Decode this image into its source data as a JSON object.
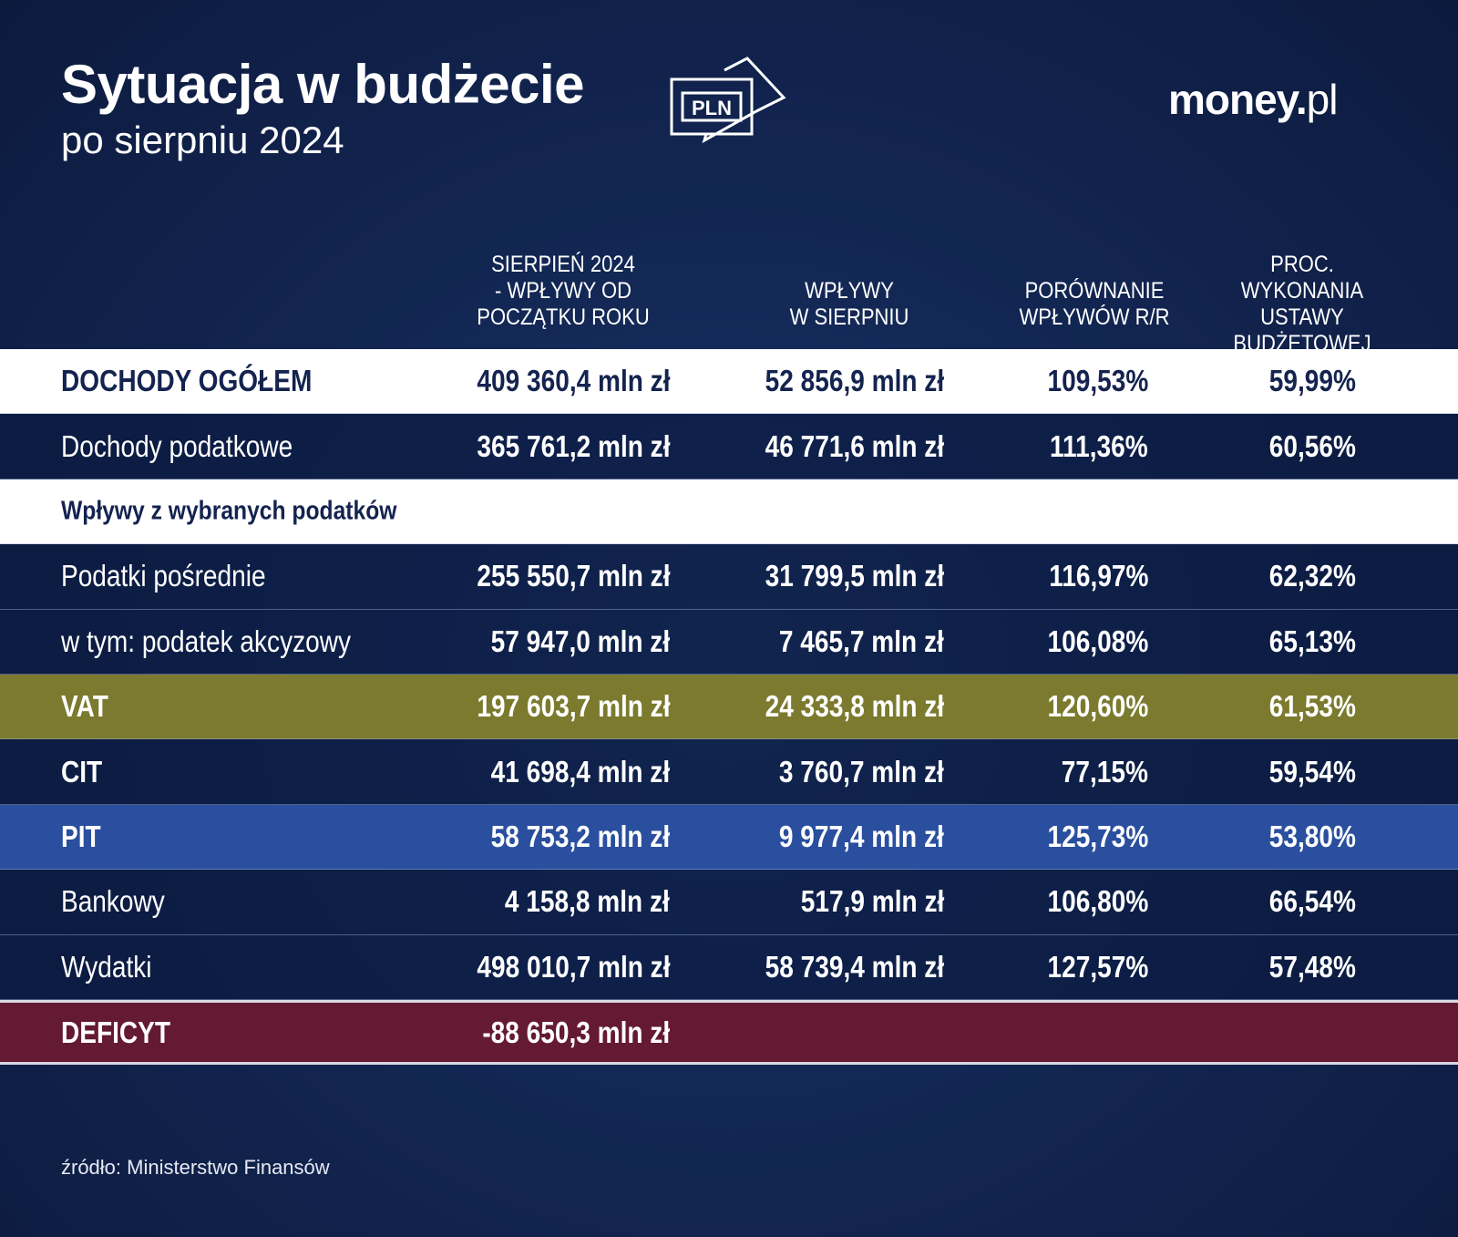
{
  "header": {
    "title": "Sytuacja w budżecie",
    "subtitle": "po sierpniu 2024",
    "icon_text": "PLN",
    "logo_main": "money.",
    "logo_suffix": "pl"
  },
  "columns": [
    "SIERPIEŃ 2024\n- WPŁYWY OD\nPOCZĄTKU ROKU",
    "WPŁYWY\nW SIERPNIU",
    "PORÓWNANIE\nWPŁYWÓW R/R",
    "PROC. WYKONANIA\nUSTAWY\nBUDŻETOWEJ"
  ],
  "rows": [
    {
      "label": "DOCHODY OGÓŁEM",
      "ytd": "409 360,4 mln zł",
      "month": "52 856,9 mln zł",
      "yoy": "109,53%",
      "exec": "59,99%"
    },
    {
      "label": "Dochody podatkowe",
      "ytd": "365 761,2 mln zł",
      "month": "46 771,6 mln zł",
      "yoy": "111,36%",
      "exec": "60,56%"
    },
    {
      "label": "Wpływy z wybranych podatków"
    },
    {
      "label": "Podatki pośrednie",
      "ytd": "255 550,7 mln zł",
      "month": "31 799,5 mln zł",
      "yoy": "116,97%",
      "exec": "62,32%"
    },
    {
      "label": "w tym: podatek akcyzowy",
      "ytd": "57 947,0 mln zł",
      "month": "7 465,7 mln zł",
      "yoy": "106,08%",
      "exec": "65,13%"
    },
    {
      "label": "VAT",
      "ytd": "197 603,7 mln zł",
      "month": "24 333,8 mln zł",
      "yoy": "120,60%",
      "exec": "61,53%"
    },
    {
      "label": "CIT",
      "ytd": "41 698,4 mln zł",
      "month": "3 760,7 mln zł",
      "yoy": "77,15%",
      "exec": "59,54%"
    },
    {
      "label": "PIT",
      "ytd": "58 753,2 mln zł",
      "month": "9 977,4 mln zł",
      "yoy": "125,73%",
      "exec": "53,80%"
    },
    {
      "label": "Bankowy",
      "ytd": "4 158,8 mln zł",
      "month": "517,9 mln zł",
      "yoy": "106,80%",
      "exec": "66,54%"
    },
    {
      "label": "Wydatki",
      "ytd": "498 010,7 mln zł",
      "month": "58 739,4 mln zł",
      "yoy": "127,57%",
      "exec": "57,48%"
    },
    {
      "label": "DEFICYT",
      "ytd": "-88 650,3 mln zł"
    }
  ],
  "colors": {
    "background": "#132754",
    "vat": "#7b7a2e",
    "pit": "#2a4f9e",
    "deficit": "#651a33",
    "white_row_text": "#14234f"
  },
  "source": "źródło: Ministerstwo Finansów"
}
